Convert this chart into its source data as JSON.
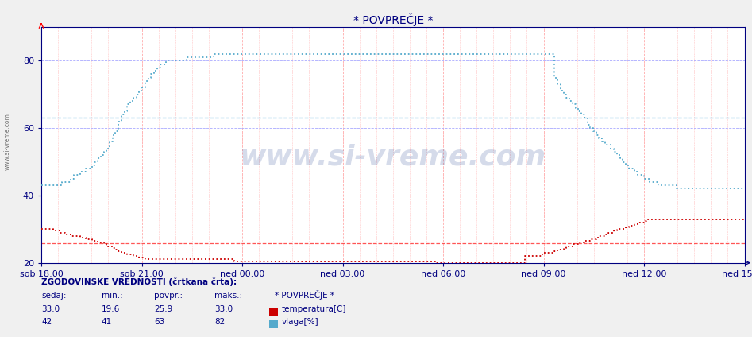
{
  "title": "* POVPREČJE *",
  "title_color": "#000080",
  "bg_color": "#f0f0f0",
  "plot_bg_color": "#ffffff",
  "xlim": [
    0,
    252
  ],
  "ylim": [
    20,
    85
  ],
  "yticks": [
    20,
    40,
    60,
    80
  ],
  "xtick_labels": [
    "sob 18:00",
    "sob 21:00",
    "ned 00:00",
    "ned 03:00",
    "ned 06:00",
    "ned 09:00",
    "ned 12:00",
    "ned 15:00"
  ],
  "xtick_positions": [
    0,
    36,
    72,
    108,
    144,
    180,
    216,
    252
  ],
  "temp_color": "#cc0000",
  "humidity_color": "#55aacc",
  "temp_avg_line": 25.9,
  "humidity_avg_line": 63,
  "temp_min": 19.6,
  "temp_max": 33.0,
  "temp_sedaj": 33.0,
  "humidity_min": 41,
  "humidity_max": 82,
  "humidity_sedaj": 42,
  "humidity_avg": 63,
  "watermark_text": "www.si-vreme.com",
  "watermark_color": "#1a3a8c",
  "watermark_alpha": 0.18,
  "temp_data": [
    30,
    30,
    30,
    30,
    29.5,
    29.5,
    29,
    29,
    28.5,
    28.5,
    28,
    28,
    28,
    27.5,
    27.5,
    27,
    27,
    26.5,
    26.5,
    26,
    26,
    25.5,
    25,
    25,
    24.5,
    24,
    23.5,
    23,
    23,
    22.5,
    22.5,
    22,
    22,
    21.5,
    21.5,
    21,
    21,
    21,
    21,
    21,
    21,
    21,
    21,
    21,
    21,
    21,
    21,
    21,
    21,
    21,
    21,
    21,
    21,
    21,
    21,
    21,
    21,
    21,
    21,
    21,
    21,
    21,
    21,
    21,
    21,
    20.5,
    20.5,
    20.5,
    20.5,
    20.5,
    20.5,
    20.5,
    20.5,
    20.5,
    20.5,
    20.5,
    20.5,
    20.5,
    20.5,
    20.5,
    20.5,
    20.5,
    20.5,
    20.5,
    20.5,
    20.5,
    20.5,
    20.5,
    20.5,
    20.5,
    20.5,
    20.5,
    20.5,
    20.5,
    20.5,
    20.5,
    20.5,
    20.5,
    20.5,
    20.5,
    20.5,
    20.5,
    20.5,
    20.5,
    20.5,
    20.5,
    20.5,
    20.5,
    20.5,
    20.5,
    20.5,
    20.5,
    20.5,
    20.5,
    20.5,
    20.5,
    20.5,
    20.5,
    20.5,
    20.5,
    20.5,
    20.5,
    20.5,
    20.5,
    20.5,
    20.5,
    20.5,
    20.5,
    20.5,
    20.5,
    20.5,
    20.5,
    20.5,
    20,
    20,
    20,
    20,
    20,
    20,
    20,
    20,
    20,
    20,
    20,
    20,
    20,
    20,
    20,
    20,
    20,
    20,
    20,
    20,
    20,
    20,
    20,
    20,
    20,
    20,
    20,
    20,
    20,
    20,
    22,
    22,
    22,
    22,
    22,
    22,
    23,
    23,
    23,
    23,
    23.5,
    24,
    24,
    24.5,
    25,
    25,
    25.5,
    25.5,
    26,
    26,
    26.5,
    26.5,
    27,
    27,
    27.5,
    28,
    28,
    28.5,
    29,
    29,
    29.5,
    30,
    30,
    30,
    30.5,
    31,
    31,
    31.5,
    32,
    32,
    32.5,
    33,
    33,
    33,
    33,
    33,
    33,
    33,
    33,
    33,
    33,
    33,
    33,
    33,
    33,
    33,
    33,
    33,
    33,
    33,
    33,
    33,
    33,
    33,
    33,
    33,
    33,
    33,
    33,
    33,
    33,
    33,
    33,
    33,
    33
  ],
  "humidity_data": [
    43,
    43,
    43,
    43,
    43,
    43,
    43,
    44,
    44,
    44,
    45,
    46,
    46,
    47,
    47,
    48,
    48,
    49,
    50,
    51,
    52,
    53,
    54,
    56,
    58,
    59,
    62,
    64,
    65,
    67,
    68,
    69,
    70,
    71,
    72,
    74,
    75,
    76,
    77,
    78,
    79,
    79,
    80,
    80,
    80,
    80,
    80,
    80,
    80,
    81,
    81,
    81,
    81,
    81,
    81,
    81,
    81,
    81,
    82,
    82,
    82,
    82,
    82,
    82,
    82,
    82,
    82,
    82,
    82,
    82,
    82,
    82,
    82,
    82,
    82,
    82,
    82,
    82,
    82,
    82,
    82,
    82,
    82,
    82,
    82,
    82,
    82,
    82,
    82,
    82,
    82,
    82,
    82,
    82,
    82,
    82,
    82,
    82,
    82,
    82,
    82,
    82,
    82,
    82,
    82,
    82,
    82,
    82,
    82,
    82,
    82,
    82,
    82,
    82,
    82,
    82,
    82,
    82,
    82,
    82,
    82,
    82,
    82,
    82,
    82,
    82,
    82,
    82,
    82,
    82,
    82,
    82,
    82,
    82,
    82,
    82,
    82,
    82,
    82,
    82,
    82,
    82,
    82,
    82,
    82,
    82,
    82,
    82,
    82,
    82,
    82,
    82,
    82,
    82,
    82,
    82,
    82,
    82,
    82,
    82,
    82,
    82,
    82,
    82,
    82,
    82,
    82,
    82,
    82,
    82,
    82,
    82,
    82,
    75,
    73,
    71,
    70,
    69,
    68,
    67,
    66,
    65,
    64,
    63,
    61,
    60,
    59,
    58,
    57,
    56,
    55,
    55,
    54,
    53,
    52,
    51,
    50,
    49,
    48,
    48,
    47,
    46,
    46,
    45,
    45,
    44,
    44,
    44,
    43,
    43,
    43,
    43,
    43,
    43,
    42,
    42,
    42,
    42,
    42,
    42,
    42,
    42,
    42,
    42,
    42,
    42,
    42,
    42,
    42,
    42,
    42,
    42,
    42,
    42,
    42,
    42,
    42,
    42,
    42,
    42,
    42,
    42,
    42,
    42,
    42,
    42,
    42,
    42,
    42,
    42,
    42,
    42
  ],
  "footer_text": "ZGODOVINSKE VREDNOSTI (črtkana črta):",
  "footer_color": "#000080",
  "label_temp": "temperatura[C]",
  "label_humidity": "vlaga[%]",
  "text_color": "#000080",
  "grid_v_color": "#ffaaaa",
  "grid_h_color": "#aaaaff",
  "avg_line_temp_color": "#ff5555",
  "avg_line_humidity_color": "#55aadd"
}
